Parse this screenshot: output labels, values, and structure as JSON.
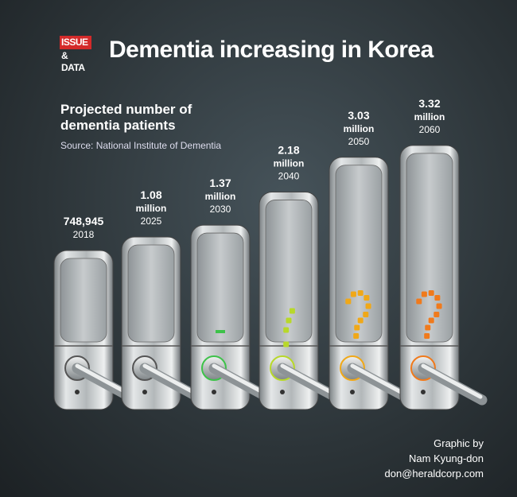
{
  "logo": {
    "top": "ISSUE",
    "bottom": "& DATA"
  },
  "title": "Dementia increasing in Korea",
  "chart_data": {
    "type": "bar",
    "subtitle": "Projected number of dementia patients",
    "source": "Source: National Institute of Dementia",
    "categories": [
      "2018",
      "2025",
      "2030",
      "2040",
      "2050",
      "2060"
    ],
    "values": [
      748945,
      1080000,
      1370000,
      2180000,
      3030000,
      3320000
    ],
    "value_labels": [
      "748,945",
      "1.08 million",
      "1.37 million",
      "2.18 million",
      "3.03 million",
      "3.32 million"
    ]
  },
  "credit": {
    "line1": "Graphic by",
    "line2": "Nam Kyung-don",
    "line3": "don@heraldcorp.com"
  }
}
